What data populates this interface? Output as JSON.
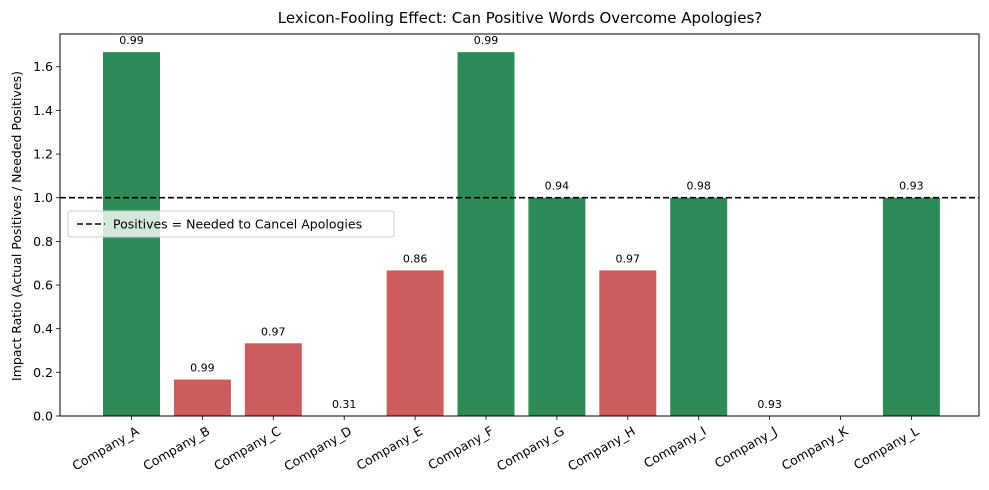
{
  "chart_data": {
    "type": "bar",
    "title": "Lexicon-Fooling Effect: Can Positive Words Overcome Apologies?",
    "xlabel": "",
    "ylabel": "Impact Ratio (Actual Positives / Needed Positives)",
    "ylim": [
      0,
      1.75
    ],
    "yticks": [
      "0.0",
      "0.2",
      "0.4",
      "0.6",
      "0.8",
      "1.0",
      "1.2",
      "1.4",
      "1.6"
    ],
    "categories": [
      "Company_A",
      "Company_B",
      "Company_C",
      "Company_D",
      "Company_E",
      "Company_F",
      "Company_G",
      "Company_H",
      "Company_I",
      "Company_J",
      "Company_K",
      "Company_L"
    ],
    "values": [
      1.667,
      0.167,
      0.333,
      0.0,
      0.667,
      1.667,
      1.0,
      0.667,
      1.0,
      0.0,
      null,
      1.0
    ],
    "bar_labels": [
      "0.99",
      "0.99",
      "0.97",
      "0.31",
      "0.86",
      "0.99",
      "0.94",
      "0.97",
      "0.98",
      "0.93",
      "",
      "0.93"
    ],
    "bar_colors": [
      "#2e8b57",
      "#cd5c5c",
      "#cd5c5c",
      "#cd5c5c",
      "#cd5c5c",
      "#2e8b57",
      "#2e8b57",
      "#cd5c5c",
      "#2e8b57",
      "#cd5c5c",
      "#cd5c5c",
      "#2e8b57"
    ],
    "reference_line": {
      "value": 1.0,
      "style": "dashed",
      "color": "#000000",
      "label": "Positives = Needed to Cancel Apologies"
    },
    "legend_position": "center-left",
    "grid": false
  }
}
